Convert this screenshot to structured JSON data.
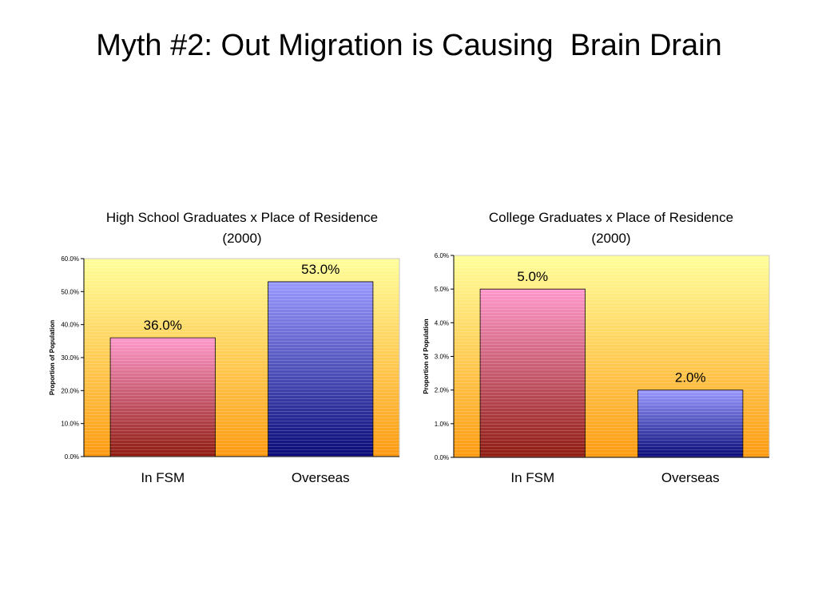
{
  "slide": {
    "title": "Myth #2: Out Migration is Causing  Brain Drain"
  },
  "colors": {
    "plot_top": "#ffff9a",
    "plot_bottom": "#ff9a10",
    "series_fsm_top": "#ff99cc",
    "series_fsm_bottom": "#8f1b10",
    "series_overseas_top": "#9999ff",
    "series_overseas_bottom": "#0a0a78"
  },
  "chart_data": [
    {
      "type": "bar",
      "title": [
        "High School Graduates x Place of Residence",
        "(2000)"
      ],
      "categories": [
        "In FSM",
        "Overseas"
      ],
      "values": [
        36.0,
        53.0
      ],
      "data_labels": [
        "36.0%",
        "53.0%"
      ],
      "xlabel": "",
      "ylabel": "Proportion of Population",
      "ylim": [
        0,
        60
      ],
      "ytick_values": [
        0,
        10,
        20,
        30,
        40,
        50,
        60
      ],
      "ytick_labels": [
        "0.0%",
        "10.0%",
        "20.0%",
        "30.0%",
        "40.0%",
        "50.0%",
        "60.0%"
      ]
    },
    {
      "type": "bar",
      "title": [
        "College Graduates x Place of Residence",
        "(2000)"
      ],
      "categories": [
        "In FSM",
        "Overseas"
      ],
      "values": [
        5.0,
        2.0
      ],
      "data_labels": [
        "5.0%",
        "2.0%"
      ],
      "xlabel": "",
      "ylabel": "Proportion of Population",
      "ylim": [
        0,
        6
      ],
      "ytick_values": [
        0,
        1,
        2,
        3,
        4,
        5,
        6
      ],
      "ytick_labels": [
        "0.0%",
        "1.0%",
        "2.0%",
        "3.0%",
        "4.0%",
        "5.0%",
        "6.0%"
      ]
    }
  ]
}
